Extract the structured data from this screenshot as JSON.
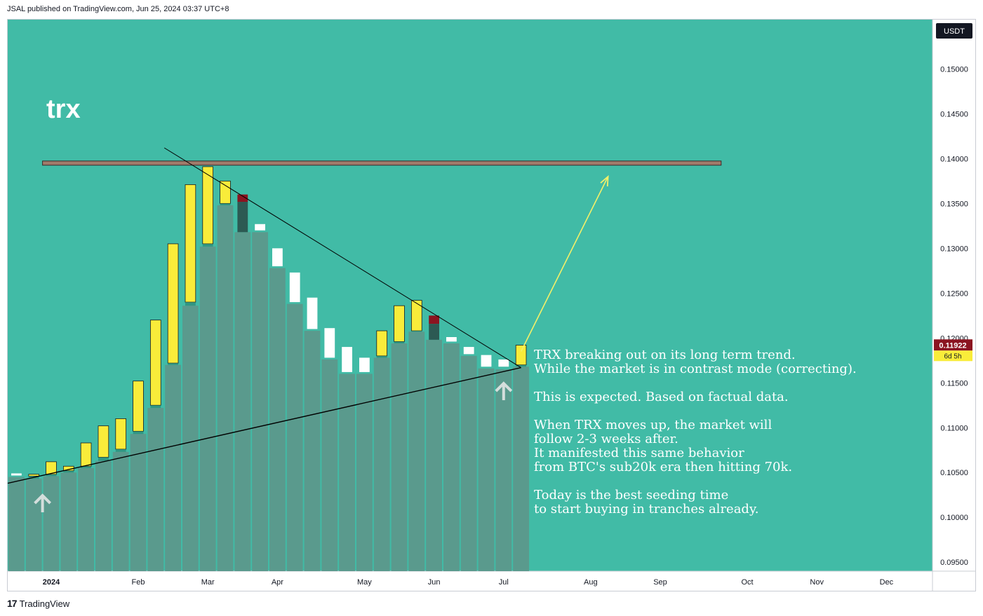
{
  "header": {
    "publish_line": "JSAL published on TradingView.com, Jun 25, 2024 03:37 UTC+8"
  },
  "footer": {
    "logo_text": "TradingView",
    "logo_icon": "tradingview-logo-icon"
  },
  "colors": {
    "background": "#41bba6",
    "shadow_bar": "#5a9a8d",
    "bull_body": "#f9ec3a",
    "bull_wick_fill": "#2e8a75",
    "neutral_body": "#ffffff",
    "bear_body": "#8b1420",
    "bear_dark": "#2c5a53",
    "resistance": "#a07a6a",
    "projection_arrow": "#f3f06a",
    "up_arrow": "#d4dedc",
    "price_badge": "#8b1420",
    "countdown_badge": "#f9ec3a",
    "axis_text": "#131722"
  },
  "chart_data": {
    "type": "candlestick",
    "title": "trx",
    "currency": "USDT",
    "interval": "weekly",
    "ylim": [
      0.094,
      0.1555
    ],
    "y_ticks": [
      "0.15000",
      "0.14500",
      "0.14000",
      "0.13500",
      "0.13000",
      "0.12500",
      "0.12000",
      "0.11500",
      "0.11000",
      "0.10500",
      "0.10000",
      "0.09500"
    ],
    "y_tick_values": [
      0.15,
      0.145,
      0.14,
      0.135,
      0.13,
      0.125,
      0.12,
      0.115,
      0.11,
      0.105,
      0.1,
      0.095
    ],
    "x_ticks": [
      "2024",
      "Feb",
      "Mar",
      "Apr",
      "May",
      "Jun",
      "Jul",
      "Aug",
      "Sep",
      "Oct",
      "Nov",
      "Dec"
    ],
    "x_tick_weeks": [
      2.5,
      7.5,
      11.5,
      15.5,
      20.5,
      24.5,
      28.5,
      33.5,
      37.5,
      42.5,
      46.5,
      50.5
    ],
    "candles": [
      {
        "week": 0,
        "open": 0.1049,
        "close": 0.1048,
        "high": 0.1052,
        "low": 0.1045
      },
      {
        "week": 1,
        "open": 0.1046,
        "close": 0.1048,
        "high": 0.105,
        "low": 0.1043
      },
      {
        "week": 2,
        "open": 0.1048,
        "close": 0.1062,
        "high": 0.1063,
        "low": 0.1046
      },
      {
        "week": 3,
        "open": 0.1052,
        "close": 0.1057,
        "high": 0.1058,
        "low": 0.105
      },
      {
        "week": 4,
        "open": 0.1057,
        "close": 0.1083,
        "high": 0.1084,
        "low": 0.1055
      },
      {
        "week": 5,
        "open": 0.1067,
        "close": 0.1102,
        "high": 0.1103,
        "low": 0.1063
      },
      {
        "week": 6,
        "open": 0.1076,
        "close": 0.111,
        "high": 0.1111,
        "low": 0.1073
      },
      {
        "week": 7,
        "open": 0.1096,
        "close": 0.1152,
        "high": 0.1153,
        "low": 0.1093
      },
      {
        "week": 8,
        "open": 0.1125,
        "close": 0.122,
        "high": 0.1221,
        "low": 0.1122
      },
      {
        "week": 9,
        "open": 0.1172,
        "close": 0.1305,
        "high": 0.1306,
        "low": 0.117
      },
      {
        "week": 10,
        "open": 0.124,
        "close": 0.1371,
        "high": 0.1372,
        "low": 0.1236
      },
      {
        "week": 11,
        "open": 0.1305,
        "close": 0.1391,
        "high": 0.1392,
        "low": 0.1302
      },
      {
        "week": 12,
        "open": 0.135,
        "close": 0.1375,
        "high": 0.1376,
        "low": 0.1348
      },
      {
        "week": 13,
        "open": 0.136,
        "close": 0.135,
        "high": 0.1361,
        "low": 0.1318
      },
      {
        "week": 14,
        "open": 0.1327,
        "close": 0.132,
        "high": 0.1328,
        "low": 0.1318
      },
      {
        "week": 15,
        "open": 0.13,
        "close": 0.128,
        "high": 0.13,
        "low": 0.1278
      },
      {
        "week": 16,
        "open": 0.1273,
        "close": 0.124,
        "high": 0.1273,
        "low": 0.1238
      },
      {
        "week": 17,
        "open": 0.1245,
        "close": 0.121,
        "high": 0.1245,
        "low": 0.1208
      },
      {
        "week": 18,
        "open": 0.1211,
        "close": 0.1178,
        "high": 0.1211,
        "low": 0.1176
      },
      {
        "week": 19,
        "open": 0.119,
        "close": 0.1162,
        "high": 0.119,
        "low": 0.116
      },
      {
        "week": 20,
        "open": 0.1178,
        "close": 0.1162,
        "high": 0.1178,
        "low": 0.116
      },
      {
        "week": 21,
        "open": 0.118,
        "close": 0.1208,
        "high": 0.1209,
        "low": 0.1178
      },
      {
        "week": 22,
        "open": 0.1196,
        "close": 0.1236,
        "high": 0.1237,
        "low": 0.1194
      },
      {
        "week": 23,
        "open": 0.1208,
        "close": 0.1242,
        "high": 0.1243,
        "low": 0.1207
      },
      {
        "week": 24,
        "open": 0.1225,
        "close": 0.1212,
        "high": 0.1226,
        "low": 0.1198
      },
      {
        "week": 25,
        "open": 0.1201,
        "close": 0.1196,
        "high": 0.1202,
        "low": 0.1194
      },
      {
        "week": 26,
        "open": 0.119,
        "close": 0.1182,
        "high": 0.119,
        "low": 0.118
      },
      {
        "week": 27,
        "open": 0.1181,
        "close": 0.1168,
        "high": 0.1181,
        "low": 0.1166
      },
      {
        "week": 28,
        "open": 0.1176,
        "close": 0.1168,
        "high": 0.1177,
        "low": 0.1165
      },
      {
        "week": 29,
        "open": 0.117,
        "close": 0.1192,
        "high": 0.1193,
        "low": 0.1168
      }
    ],
    "current_price": {
      "label": "0.11922",
      "value": 0.11922,
      "countdown": "6d 5h"
    },
    "annotations": {
      "resistance_level": 0.1395,
      "resistance_weeks": [
        2,
        41
      ],
      "descending_trendline": {
        "start": {
          "week": 9,
          "price": 0.1412
        },
        "end": {
          "week": 29.5,
          "price": 0.1167
        }
      },
      "ascending_trendline": {
        "start": {
          "week": 0,
          "price": 0.1038
        },
        "end": {
          "week": 29.5,
          "price": 0.1167
        }
      },
      "projection_arrow": {
        "start": {
          "week": 29.5,
          "price": 0.1185
        },
        "end": {
          "week": 34.5,
          "price": 0.138
        }
      },
      "up_arrows": [
        {
          "week": 2,
          "price": 0.1015
        },
        {
          "week": 28.5,
          "price": 0.114
        }
      ],
      "note_lines": [
        "TRX breaking out on its long term trend.",
        "While the market is in contrast mode (correcting).",
        "",
        "This is expected. Based on factual data.",
        "",
        "When TRX moves up, the market will",
        "follow 2-3 weeks after.",
        "It manifested this same behavior",
        "from BTC's sub20k era then hitting 70k.",
        "",
        "Today is the best seeding time",
        "to start buying in tranches already."
      ]
    }
  }
}
